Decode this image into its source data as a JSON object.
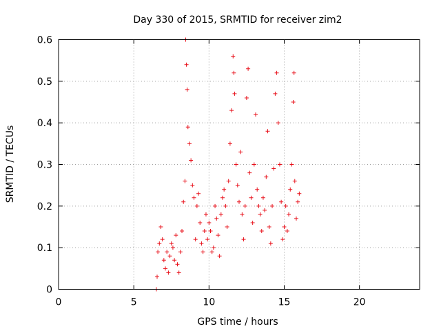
{
  "chart_data": {
    "type": "scatter",
    "title": "Day 330 of 2015, SRMTID for receiver zim2",
    "xlabel": "GPS time / hours",
    "ylabel": "SRMTID / TECUs",
    "xlim": [
      0,
      24
    ],
    "ylim": [
      0,
      0.6
    ],
    "xticks": [
      "0",
      "5",
      "10",
      "15",
      "20"
    ],
    "yticks": [
      "0",
      "0.1",
      "0.2",
      "0.3",
      "0.4",
      "0.5",
      "0.6"
    ],
    "grid": true,
    "marker": "plus",
    "color": "#e8101a",
    "series": [
      {
        "name": "zim2",
        "points": [
          [
            6.5,
            0.0
          ],
          [
            6.55,
            0.03
          ],
          [
            6.6,
            0.09
          ],
          [
            6.7,
            0.11
          ],
          [
            6.8,
            0.15
          ],
          [
            6.9,
            0.12
          ],
          [
            7.0,
            0.07
          ],
          [
            7.1,
            0.05
          ],
          [
            7.2,
            0.09
          ],
          [
            7.3,
            0.04
          ],
          [
            7.4,
            0.08
          ],
          [
            7.5,
            0.11
          ],
          [
            7.6,
            0.1
          ],
          [
            7.7,
            0.07
          ],
          [
            7.8,
            0.13
          ],
          [
            7.9,
            0.06
          ],
          [
            8.0,
            0.04
          ],
          [
            8.1,
            0.09
          ],
          [
            8.2,
            0.14
          ],
          [
            8.3,
            0.21
          ],
          [
            8.4,
            0.26
          ],
          [
            8.45,
            0.6
          ],
          [
            8.5,
            0.54
          ],
          [
            8.55,
            0.48
          ],
          [
            8.6,
            0.39
          ],
          [
            8.7,
            0.35
          ],
          [
            8.8,
            0.31
          ],
          [
            8.9,
            0.25
          ],
          [
            9.0,
            0.22
          ],
          [
            9.1,
            0.12
          ],
          [
            9.2,
            0.2
          ],
          [
            9.3,
            0.23
          ],
          [
            9.4,
            0.16
          ],
          [
            9.5,
            0.11
          ],
          [
            9.6,
            0.09
          ],
          [
            9.7,
            0.14
          ],
          [
            9.8,
            0.18
          ],
          [
            9.9,
            0.12
          ],
          [
            10.0,
            0.16
          ],
          [
            10.1,
            0.14
          ],
          [
            10.2,
            0.09
          ],
          [
            10.3,
            0.1
          ],
          [
            10.4,
            0.2
          ],
          [
            10.5,
            0.17
          ],
          [
            10.6,
            0.13
          ],
          [
            10.7,
            0.08
          ],
          [
            10.8,
            0.18
          ],
          [
            10.9,
            0.22
          ],
          [
            11.0,
            0.24
          ],
          [
            11.1,
            0.2
          ],
          [
            11.2,
            0.15
          ],
          [
            11.3,
            0.26
          ],
          [
            11.4,
            0.35
          ],
          [
            11.5,
            0.43
          ],
          [
            11.6,
            0.56
          ],
          [
            11.65,
            0.52
          ],
          [
            11.7,
            0.47
          ],
          [
            11.8,
            0.3
          ],
          [
            11.9,
            0.25
          ],
          [
            12.0,
            0.21
          ],
          [
            12.1,
            0.33
          ],
          [
            12.2,
            0.18
          ],
          [
            12.3,
            0.12
          ],
          [
            12.4,
            0.2
          ],
          [
            12.5,
            0.46
          ],
          [
            12.6,
            0.53
          ],
          [
            12.7,
            0.28
          ],
          [
            12.8,
            0.22
          ],
          [
            12.9,
            0.16
          ],
          [
            13.0,
            0.3
          ],
          [
            13.1,
            0.42
          ],
          [
            13.2,
            0.24
          ],
          [
            13.3,
            0.2
          ],
          [
            13.4,
            0.18
          ],
          [
            13.5,
            0.14
          ],
          [
            13.6,
            0.22
          ],
          [
            13.7,
            0.19
          ],
          [
            13.8,
            0.27
          ],
          [
            13.9,
            0.38
          ],
          [
            14.0,
            0.15
          ],
          [
            14.1,
            0.11
          ],
          [
            14.2,
            0.2
          ],
          [
            14.3,
            0.29
          ],
          [
            14.4,
            0.47
          ],
          [
            14.5,
            0.52
          ],
          [
            14.6,
            0.4
          ],
          [
            14.7,
            0.3
          ],
          [
            14.8,
            0.21
          ],
          [
            14.9,
            0.12
          ],
          [
            15.0,
            0.15
          ],
          [
            15.1,
            0.2
          ],
          [
            15.2,
            0.14
          ],
          [
            15.3,
            0.18
          ],
          [
            15.4,
            0.24
          ],
          [
            15.5,
            0.3
          ],
          [
            15.6,
            0.45
          ],
          [
            15.65,
            0.52
          ],
          [
            15.7,
            0.26
          ],
          [
            15.8,
            0.17
          ],
          [
            15.9,
            0.21
          ],
          [
            16.0,
            0.23
          ]
        ]
      }
    ]
  }
}
